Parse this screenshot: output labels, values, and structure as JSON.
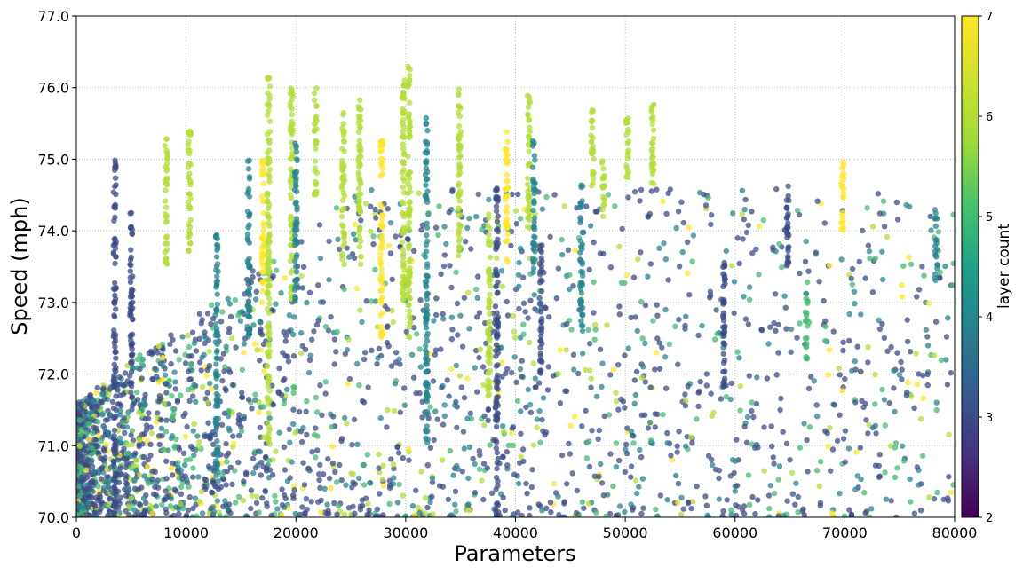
{
  "chart_data": {
    "type": "scatter",
    "title": "",
    "xlabel": "Parameters",
    "ylabel": "Speed (mph)",
    "xlim": [
      0,
      80000
    ],
    "ylim": [
      70.0,
      77.0
    ],
    "x_ticks": [
      0,
      10000,
      20000,
      30000,
      40000,
      50000,
      60000,
      70000,
      80000
    ],
    "x_tick_labels": [
      "0",
      "10000",
      "20000",
      "30000",
      "40000",
      "50000",
      "60000",
      "70000",
      "80000"
    ],
    "y_ticks": [
      70,
      71,
      72,
      73,
      74,
      75,
      76,
      77
    ],
    "y_tick_labels": [
      "70.0",
      "71.0",
      "72.0",
      "73.0",
      "74.0",
      "75.0",
      "76.0",
      "77.0"
    ],
    "grid": true,
    "grid_style": "dotted",
    "colorbar": {
      "label": "layer count",
      "range": [
        2,
        7
      ],
      "ticks": [
        2,
        3,
        4,
        5,
        6,
        7
      ],
      "tick_labels": [
        "2",
        "3",
        "4",
        "5",
        "6",
        "7"
      ],
      "colormap": "viridis",
      "position": "right"
    },
    "columns": [
      {
        "x": 3500,
        "y": [
          70.0,
          75.0
        ],
        "layer": 3
      },
      {
        "x": 5000,
        "y": [
          71.5,
          74.3
        ],
        "layer": 3
      },
      {
        "x": 8200,
        "y": [
          73.5,
          75.3
        ],
        "layer": 6
      },
      {
        "x": 10300,
        "y": [
          73.7,
          75.4
        ],
        "layer": 6
      },
      {
        "x": 12800,
        "y": [
          70.5,
          74.0
        ],
        "layer": 4
      },
      {
        "x": 15700,
        "y": [
          72.5,
          75.0
        ],
        "layer": 4
      },
      {
        "x": 17000,
        "y": [
          73.0,
          75.0
        ],
        "layer": 7
      },
      {
        "x": 17500,
        "y": [
          71.0,
          76.3
        ],
        "layer": 6
      },
      {
        "x": 19600,
        "y": [
          73.0,
          76.0
        ],
        "layer": 6
      },
      {
        "x": 20000,
        "y": [
          73.0,
          75.3
        ],
        "layer": 4
      },
      {
        "x": 21800,
        "y": [
          74.5,
          76.0
        ],
        "layer": 6
      },
      {
        "x": 24300,
        "y": [
          73.5,
          75.7
        ],
        "layer": 6
      },
      {
        "x": 25800,
        "y": [
          73.5,
          75.9
        ],
        "layer": 6
      },
      {
        "x": 27800,
        "y": [
          72.5,
          75.3
        ],
        "layer": 7
      },
      {
        "x": 29800,
        "y": [
          73.0,
          76.1
        ],
        "layer": 6
      },
      {
        "x": 30300,
        "y": [
          72.5,
          76.3
        ],
        "layer": 6
      },
      {
        "x": 31900,
        "y": [
          71.0,
          75.6
        ],
        "layer": 4
      },
      {
        "x": 34900,
        "y": [
          73.5,
          76.0
        ],
        "layer": 6
      },
      {
        "x": 37600,
        "y": [
          71.7,
          74.3
        ],
        "layer": 6
      },
      {
        "x": 38300,
        "y": [
          70.0,
          74.6
        ],
        "layer": 3
      },
      {
        "x": 39200,
        "y": [
          73.5,
          75.4
        ],
        "layer": 7
      },
      {
        "x": 41200,
        "y": [
          74.0,
          76.0
        ],
        "layer": 6
      },
      {
        "x": 41700,
        "y": [
          73.4,
          75.3
        ],
        "layer": 4
      },
      {
        "x": 42300,
        "y": [
          72.0,
          73.8
        ],
        "layer": 3
      },
      {
        "x": 46000,
        "y": [
          72.5,
          74.7
        ],
        "layer": 4
      },
      {
        "x": 47000,
        "y": [
          74.5,
          75.7
        ],
        "layer": 6
      },
      {
        "x": 48000,
        "y": [
          74.2,
          75.0
        ],
        "layer": 6
      },
      {
        "x": 50200,
        "y": [
          74.7,
          75.7
        ],
        "layer": 6
      },
      {
        "x": 52500,
        "y": [
          74.5,
          75.8
        ],
        "layer": 6
      },
      {
        "x": 59000,
        "y": [
          71.8,
          73.6
        ],
        "layer": 3
      },
      {
        "x": 64800,
        "y": [
          73.5,
          74.8
        ],
        "layer": 3
      },
      {
        "x": 66500,
        "y": [
          72.2,
          73.1
        ],
        "layer": 5
      },
      {
        "x": 69800,
        "y": [
          74.0,
          75.0
        ],
        "layer": 7
      },
      {
        "x": 78300,
        "y": [
          73.3,
          74.3
        ],
        "layer": 4
      }
    ]
  }
}
